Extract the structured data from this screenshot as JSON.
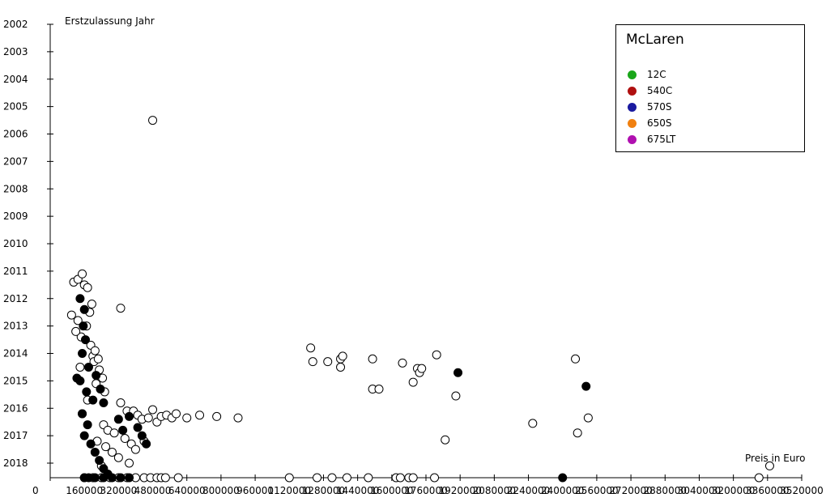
{
  "chart_data": {
    "type": "scatter",
    "title": "",
    "xlabel": "Preis in Euro",
    "ylabel": "Erstzulassung Jahr",
    "xlim": [
      0,
      3520000
    ],
    "ylim": [
      2002,
      2018.55
    ],
    "y_inverted": true,
    "x_ticks": [
      0,
      160000,
      320000,
      480000,
      640000,
      800000,
      960000,
      1120000,
      1280000,
      1440000,
      1600000,
      1760000,
      1920000,
      2080000,
      2240000,
      2400000,
      2560000,
      2720000,
      2880000,
      3040000,
      3200000,
      3360000,
      3520000
    ],
    "x_tick_labels": [
      "0",
      "160000",
      "320000",
      "480000",
      "640000",
      "800000",
      "960000",
      "1120000",
      "1280000",
      "1440000",
      "1600000",
      "1760000",
      "1920000",
      "2080000",
      "2240000",
      "2400000",
      "2560000",
      "2720000",
      "2880000",
      "3040000",
      "3200000",
      "3360000",
      "3520000"
    ],
    "y_ticks": [
      2002,
      2003,
      2004,
      2005,
      2006,
      2007,
      2008,
      2009,
      2010,
      2011,
      2012,
      2013,
      2014,
      2015,
      2016,
      2017,
      2018
    ],
    "y_tick_labels": [
      "2002",
      "2003",
      "2004",
      "2005",
      "2006",
      "2007",
      "2008",
      "2009",
      "2010",
      "2011",
      "2012",
      "2013",
      "2014",
      "2015",
      "2016",
      "2017",
      "2018"
    ],
    "grid": false,
    "legend": {
      "title": "McLaren",
      "placement": "top-right",
      "entries": [
        {
          "name": "12C",
          "color": "#1aa61a"
        },
        {
          "name": "540C",
          "color": "#b01010"
        },
        {
          "name": "570S",
          "color": "#1a1aa0"
        },
        {
          "name": "650S",
          "color": "#f08010"
        },
        {
          "name": "675LT",
          "color": "#b010b0"
        }
      ]
    },
    "points_open": [
      [
        480000,
        2005.5
      ],
      [
        1220000,
        2013.8
      ],
      [
        1230000,
        2014.3
      ],
      [
        1300000,
        2014.3
      ],
      [
        1360000,
        2014.2
      ],
      [
        1360000,
        2014.5
      ],
      [
        1370000,
        2014.1
      ],
      [
        1510000,
        2014.2
      ],
      [
        1510000,
        2015.3
      ],
      [
        1540000,
        2015.3
      ],
      [
        1650000,
        2014.35
      ],
      [
        1700000,
        2015.05
      ],
      [
        1720000,
        2014.55
      ],
      [
        1730000,
        2014.7
      ],
      [
        1740000,
        2014.55
      ],
      [
        1810000,
        2014.05
      ],
      [
        1850000,
        2017.15
      ],
      [
        1900000,
        2015.55
      ],
      [
        2260000,
        2016.55
      ],
      [
        2460000,
        2014.2
      ],
      [
        2470000,
        2016.9
      ],
      [
        2520000,
        2016.35
      ],
      [
        3370000,
        2018.1
      ],
      [
        330000,
        2012.35
      ],
      [
        100000,
        2012.6
      ],
      [
        110000,
        2011.4
      ],
      [
        130000,
        2011.3
      ],
      [
        150000,
        2011.1
      ],
      [
        160000,
        2011.5
      ],
      [
        175000,
        2011.6
      ],
      [
        195000,
        2012.2
      ],
      [
        140000,
        2014.5
      ],
      [
        200000,
        2014.1
      ],
      [
        215000,
        2015.1
      ],
      [
        330000,
        2015.8
      ],
      [
        360000,
        2016.1
      ],
      [
        390000,
        2016.1
      ],
      [
        410000,
        2016.25
      ],
      [
        430000,
        2016.4
      ],
      [
        460000,
        2016.35
      ],
      [
        480000,
        2016.05
      ],
      [
        500000,
        2016.5
      ],
      [
        520000,
        2016.3
      ],
      [
        545000,
        2016.25
      ],
      [
        570000,
        2016.35
      ],
      [
        590000,
        2016.2
      ],
      [
        640000,
        2016.35
      ],
      [
        700000,
        2016.25
      ],
      [
        780000,
        2016.3
      ],
      [
        880000,
        2016.35
      ],
      [
        250000,
        2016.6
      ],
      [
        270000,
        2016.8
      ],
      [
        300000,
        2016.9
      ],
      [
        350000,
        2017.1
      ],
      [
        380000,
        2017.3
      ],
      [
        400000,
        2017.5
      ],
      [
        440000,
        2017.2
      ],
      [
        260000,
        2017.4
      ],
      [
        290000,
        2017.6
      ],
      [
        320000,
        2017.8
      ],
      [
        370000,
        2018.0
      ],
      [
        220000,
        2017.2
      ],
      [
        240000,
        2018.1
      ],
      [
        130000,
        2012.8
      ],
      [
        145000,
        2013.4
      ],
      [
        170000,
        2013.0
      ],
      [
        190000,
        2013.7
      ],
      [
        205000,
        2014.3
      ],
      [
        230000,
        2014.6
      ],
      [
        245000,
        2014.9
      ],
      [
        120000,
        2013.2
      ],
      [
        185000,
        2012.5
      ],
      [
        210000,
        2013.9
      ],
      [
        225000,
        2014.2
      ],
      [
        255000,
        2015.4
      ],
      [
        175000,
        2015.7
      ],
      [
        150000,
        2016.2
      ]
    ],
    "points_filled": [
      [
        1910000,
        2014.7
      ],
      [
        2400000,
        2018.55
      ],
      [
        2510000,
        2015.2
      ],
      [
        140000,
        2012.0
      ],
      [
        160000,
        2012.4
      ],
      [
        155000,
        2013.0
      ],
      [
        165000,
        2013.5
      ],
      [
        150000,
        2014.0
      ],
      [
        180000,
        2014.5
      ],
      [
        140000,
        2015.0
      ],
      [
        170000,
        2015.4
      ],
      [
        200000,
        2015.7
      ],
      [
        150000,
        2016.2
      ],
      [
        175000,
        2016.6
      ],
      [
        160000,
        2017.0
      ],
      [
        190000,
        2017.3
      ],
      [
        210000,
        2017.6
      ],
      [
        230000,
        2017.9
      ],
      [
        250000,
        2018.2
      ],
      [
        270000,
        2018.4
      ],
      [
        320000,
        2016.4
      ],
      [
        340000,
        2016.8
      ],
      [
        370000,
        2016.3
      ],
      [
        410000,
        2016.7
      ],
      [
        430000,
        2017.0
      ],
      [
        450000,
        2017.3
      ],
      [
        215000,
        2014.8
      ],
      [
        235000,
        2015.3
      ],
      [
        250000,
        2015.8
      ],
      [
        125000,
        2014.9
      ]
    ],
    "bottom_row_open": [
      [
        160000,
        2018.55
      ],
      [
        200000,
        2018.55
      ],
      [
        240000,
        2018.55
      ],
      [
        280000,
        2018.55
      ],
      [
        320000,
        2018.55
      ],
      [
        360000,
        2018.55
      ],
      [
        400000,
        2018.55
      ],
      [
        440000,
        2018.55
      ],
      [
        470000,
        2018.55
      ],
      [
        500000,
        2018.55
      ],
      [
        520000,
        2018.55
      ],
      [
        540000,
        2018.55
      ],
      [
        600000,
        2018.55
      ],
      [
        1120000,
        2018.55
      ],
      [
        1250000,
        2018.55
      ],
      [
        1320000,
        2018.55
      ],
      [
        1390000,
        2018.55
      ],
      [
        1490000,
        2018.55
      ],
      [
        1620000,
        2018.55
      ],
      [
        1640000,
        2018.55
      ],
      [
        1680000,
        2018.55
      ],
      [
        1700000,
        2018.55
      ],
      [
        1800000,
        2018.55
      ],
      [
        3320000,
        2018.55
      ]
    ],
    "bottom_row_filled": [
      [
        160000,
        2018.55
      ],
      [
        180000,
        2018.55
      ],
      [
        210000,
        2018.55
      ],
      [
        250000,
        2018.55
      ],
      [
        290000,
        2018.55
      ],
      [
        330000,
        2018.55
      ],
      [
        370000,
        2018.55
      ]
    ]
  }
}
